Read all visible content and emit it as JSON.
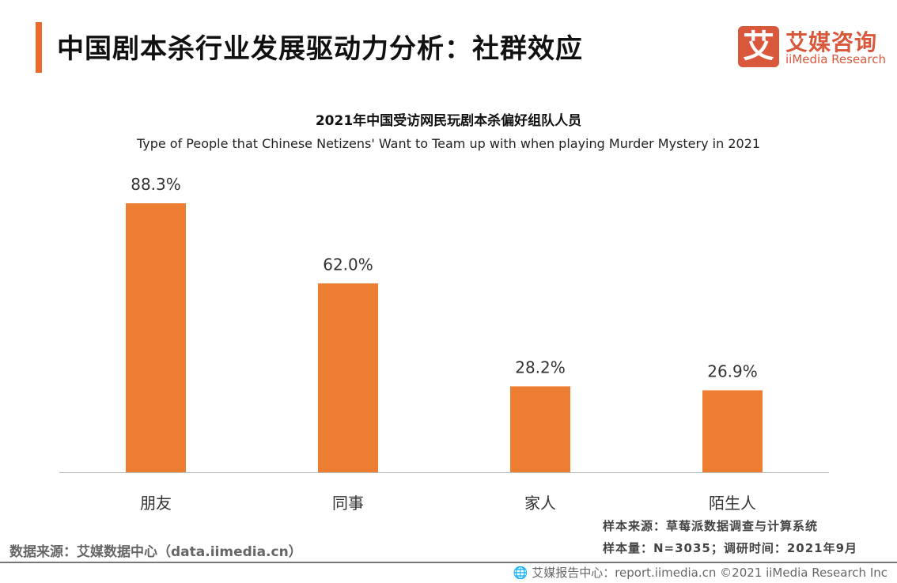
{
  "header": {
    "title": "中国剧本杀行业发展驱动力分析：社群效应",
    "logo_mark": "艾",
    "logo_cn": "艾媒咨询",
    "logo_en": "iiMedia Research"
  },
  "chart_data": {
    "type": "bar",
    "title": "2021年中国受访网民玩剧本杀偏好组队人员",
    "subtitle": "Type of People that Chinese Netizens' Want to Team up with when playing Murder Mystery  in 2021",
    "categories": [
      "朋友",
      "同事",
      "家人",
      "陌生人"
    ],
    "values": [
      88.3,
      62.0,
      28.2,
      26.9
    ],
    "labels": [
      "88.3%",
      "62.0%",
      "28.2%",
      "26.9%"
    ],
    "unit": "%",
    "ylim": [
      0,
      100
    ],
    "grid": false,
    "bar_color": "#ed7d31"
  },
  "footer": {
    "data_source": "数据来源：艾媒数据中心（data.iimedia.cn）",
    "sample_source": "样本来源：草莓派数据调查与计算系统",
    "sample_size": "样本量：N=3035；调研时间：2021年9月",
    "report": "艾媒报告中心：report.iimedia.cn   ©2021  iiMedia Research  Inc"
  }
}
